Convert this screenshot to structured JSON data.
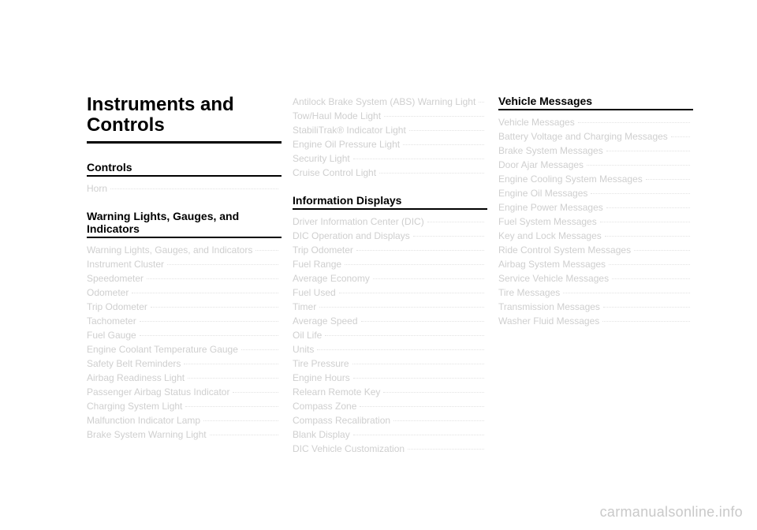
{
  "watermark": "carmanualsonline.info",
  "chapter_title": "Instruments and Controls",
  "columns": {
    "col1": {
      "sections": [
        {
          "heading": "Controls",
          "entries": [
            {
              "label": "Horn",
              "page": ""
            }
          ]
        },
        {
          "heading": "Warning Lights, Gauges, and Indicators",
          "entries": [
            {
              "label": "Warning Lights, Gauges, and Indicators",
              "page": ""
            },
            {
              "label": "Instrument Cluster",
              "page": ""
            },
            {
              "label": "Speedometer",
              "page": ""
            },
            {
              "label": "Odometer",
              "page": ""
            },
            {
              "label": "Trip Odometer",
              "page": ""
            },
            {
              "label": "Tachometer",
              "page": ""
            },
            {
              "label": "Fuel Gauge",
              "page": ""
            },
            {
              "label": "Engine Coolant Temperature Gauge",
              "page": ""
            },
            {
              "label": "Safety Belt Reminders",
              "page": ""
            },
            {
              "label": "Airbag Readiness Light",
              "page": ""
            },
            {
              "label": "Passenger Airbag Status Indicator",
              "page": ""
            },
            {
              "label": "Charging System Light",
              "page": ""
            },
            {
              "label": "Malfunction Indicator Lamp",
              "page": ""
            },
            {
              "label": "Brake System Warning Light",
              "page": ""
            }
          ]
        }
      ]
    },
    "col2": {
      "lead_entries": [
        {
          "label": "Antilock Brake System (ABS) Warning Light",
          "page": ""
        },
        {
          "label": "Tow/Haul Mode Light",
          "page": ""
        },
        {
          "label": "StabiliTrak® Indicator Light",
          "page": ""
        },
        {
          "label": "Engine Oil Pressure Light",
          "page": ""
        },
        {
          "label": "Security Light",
          "page": ""
        },
        {
          "label": "Cruise Control Light",
          "page": ""
        }
      ],
      "sections": [
        {
          "heading": "Information Displays",
          "entries": [
            {
              "label": "Driver Information Center (DIC)",
              "page": ""
            },
            {
              "label": "DIC Operation and Displays",
              "page": ""
            },
            {
              "label": "Trip Odometer",
              "page": ""
            },
            {
              "label": "Fuel Range",
              "page": ""
            },
            {
              "label": "Average Economy",
              "page": ""
            },
            {
              "label": "Fuel Used",
              "page": ""
            },
            {
              "label": "Timer",
              "page": ""
            },
            {
              "label": "Average Speed",
              "page": ""
            },
            {
              "label": "Oil Life",
              "page": ""
            },
            {
              "label": "Units",
              "page": ""
            },
            {
              "label": "Tire Pressure",
              "page": ""
            },
            {
              "label": "Engine Hours",
              "page": ""
            },
            {
              "label": "Relearn Remote Key",
              "page": ""
            },
            {
              "label": "Compass Zone",
              "page": ""
            },
            {
              "label": "Compass Recalibration",
              "page": ""
            },
            {
              "label": "Blank Display",
              "page": ""
            },
            {
              "label": "DIC Vehicle Customization",
              "page": ""
            }
          ]
        }
      ]
    },
    "col3": {
      "sections": [
        {
          "heading": "Vehicle Messages",
          "entries": [
            {
              "label": "Vehicle Messages",
              "page": ""
            },
            {
              "label": "Battery Voltage and Charging Messages",
              "page": ""
            },
            {
              "label": "Brake System Messages",
              "page": ""
            },
            {
              "label": "Door Ajar Messages",
              "page": ""
            },
            {
              "label": "Engine Cooling System Messages",
              "page": ""
            },
            {
              "label": "Engine Oil Messages",
              "page": ""
            },
            {
              "label": "Engine Power Messages",
              "page": ""
            },
            {
              "label": "Fuel System Messages",
              "page": ""
            },
            {
              "label": "Key and Lock Messages",
              "page": ""
            },
            {
              "label": "Ride Control System Messages",
              "page": ""
            },
            {
              "label": "Airbag System Messages",
              "page": ""
            },
            {
              "label": "Service Vehicle Messages",
              "page": ""
            },
            {
              "label": "Tire Messages",
              "page": ""
            },
            {
              "label": "Transmission Messages",
              "page": ""
            },
            {
              "label": "Washer Fluid Messages",
              "page": ""
            }
          ]
        }
      ]
    }
  }
}
